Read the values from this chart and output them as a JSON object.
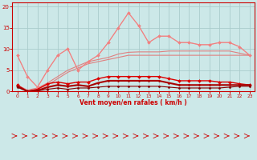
{
  "x": [
    0,
    1,
    2,
    3,
    4,
    5,
    6,
    7,
    8,
    9,
    10,
    11,
    12,
    13,
    14,
    15,
    16,
    17,
    18,
    19,
    20,
    21,
    22,
    23
  ],
  "series": [
    {
      "name": "light_pink_no_marker",
      "color": "#f0a0a0",
      "linewidth": 0.8,
      "marker": null,
      "markersize": 0,
      "values": [
        8.5,
        3.5,
        1.0,
        5.0,
        8.5,
        10.0,
        5.0,
        7.0,
        8.5,
        11.5,
        15.0,
        18.5,
        15.5,
        11.5,
        13.0,
        13.0,
        11.5,
        11.5,
        11.0,
        11.0,
        11.5,
        11.5,
        10.5,
        8.5
      ]
    },
    {
      "name": "medium_pink_smooth1",
      "color": "#e08080",
      "linewidth": 0.8,
      "marker": null,
      "markersize": 0,
      "values": [
        1.0,
        0.2,
        0.5,
        1.5,
        3.0,
        4.5,
        5.5,
        6.5,
        7.0,
        7.5,
        8.0,
        8.5,
        8.5,
        8.5,
        8.5,
        8.5,
        8.5,
        8.5,
        8.5,
        8.5,
        8.5,
        8.5,
        8.5,
        8.5
      ]
    },
    {
      "name": "medium_pink_smooth2",
      "color": "#e08080",
      "linewidth": 0.8,
      "marker": null,
      "markersize": 0,
      "values": [
        1.5,
        0.3,
        0.8,
        2.0,
        3.5,
        5.0,
        6.0,
        7.0,
        7.5,
        8.0,
        8.8,
        9.2,
        9.3,
        9.3,
        9.3,
        9.5,
        9.5,
        9.5,
        9.5,
        9.5,
        9.5,
        9.5,
        9.0,
        8.5
      ]
    },
    {
      "name": "pink_markers",
      "color": "#f08080",
      "linewidth": 0.8,
      "marker": "D",
      "markersize": 2,
      "values": [
        8.5,
        3.5,
        1.0,
        5.0,
        8.5,
        10.0,
        5.0,
        7.0,
        8.5,
        11.5,
        15.0,
        18.5,
        15.5,
        11.5,
        13.0,
        13.0,
        11.5,
        11.5,
        11.0,
        11.0,
        11.5,
        11.5,
        10.5,
        8.5
      ]
    },
    {
      "name": "red_markers_curve",
      "color": "#dd0000",
      "linewidth": 1.0,
      "marker": "D",
      "markersize": 2,
      "values": [
        1.5,
        0.0,
        0.5,
        1.8,
        2.2,
        1.8,
        2.2,
        2.2,
        3.0,
        3.5,
        3.5,
        3.5,
        3.5,
        3.5,
        3.5,
        3.0,
        2.5,
        2.5,
        2.5,
        2.5,
        2.2,
        2.2,
        1.8,
        1.5
      ]
    },
    {
      "name": "dark_red_flat",
      "color": "#aa0000",
      "linewidth": 1.5,
      "marker": "D",
      "markersize": 1.5,
      "values": [
        1.2,
        0.0,
        0.2,
        1.0,
        1.5,
        1.2,
        1.5,
        1.2,
        2.0,
        2.5,
        2.5,
        2.5,
        2.5,
        2.5,
        2.5,
        2.0,
        1.5,
        1.5,
        1.5,
        1.5,
        1.5,
        1.5,
        1.5,
        1.5
      ]
    },
    {
      "name": "darkest_red",
      "color": "#880000",
      "linewidth": 0.8,
      "marker": "D",
      "markersize": 1.5,
      "values": [
        1.0,
        0.0,
        0.1,
        0.5,
        0.8,
        0.5,
        0.8,
        0.8,
        1.0,
        1.2,
        1.2,
        1.2,
        1.2,
        1.2,
        1.2,
        1.0,
        0.8,
        0.8,
        0.8,
        0.8,
        0.8,
        1.0,
        1.2,
        1.2
      ]
    }
  ],
  "ylim": [
    0,
    21
  ],
  "xlim": [
    -0.5,
    23.5
  ],
  "yticks": [
    0,
    5,
    10,
    15,
    20
  ],
  "xticks": [
    0,
    1,
    2,
    3,
    4,
    5,
    6,
    7,
    8,
    9,
    10,
    11,
    12,
    13,
    14,
    15,
    16,
    17,
    18,
    19,
    20,
    21,
    22,
    23
  ],
  "xlabel": "Vent moyen/en rafales ( km/h )",
  "background_color": "#cce8e8",
  "grid_color": "#aacccc",
  "tick_color": "#cc0000",
  "label_color": "#cc0000",
  "arrow_color": "#cc0000",
  "spine_color": "#cc0000"
}
